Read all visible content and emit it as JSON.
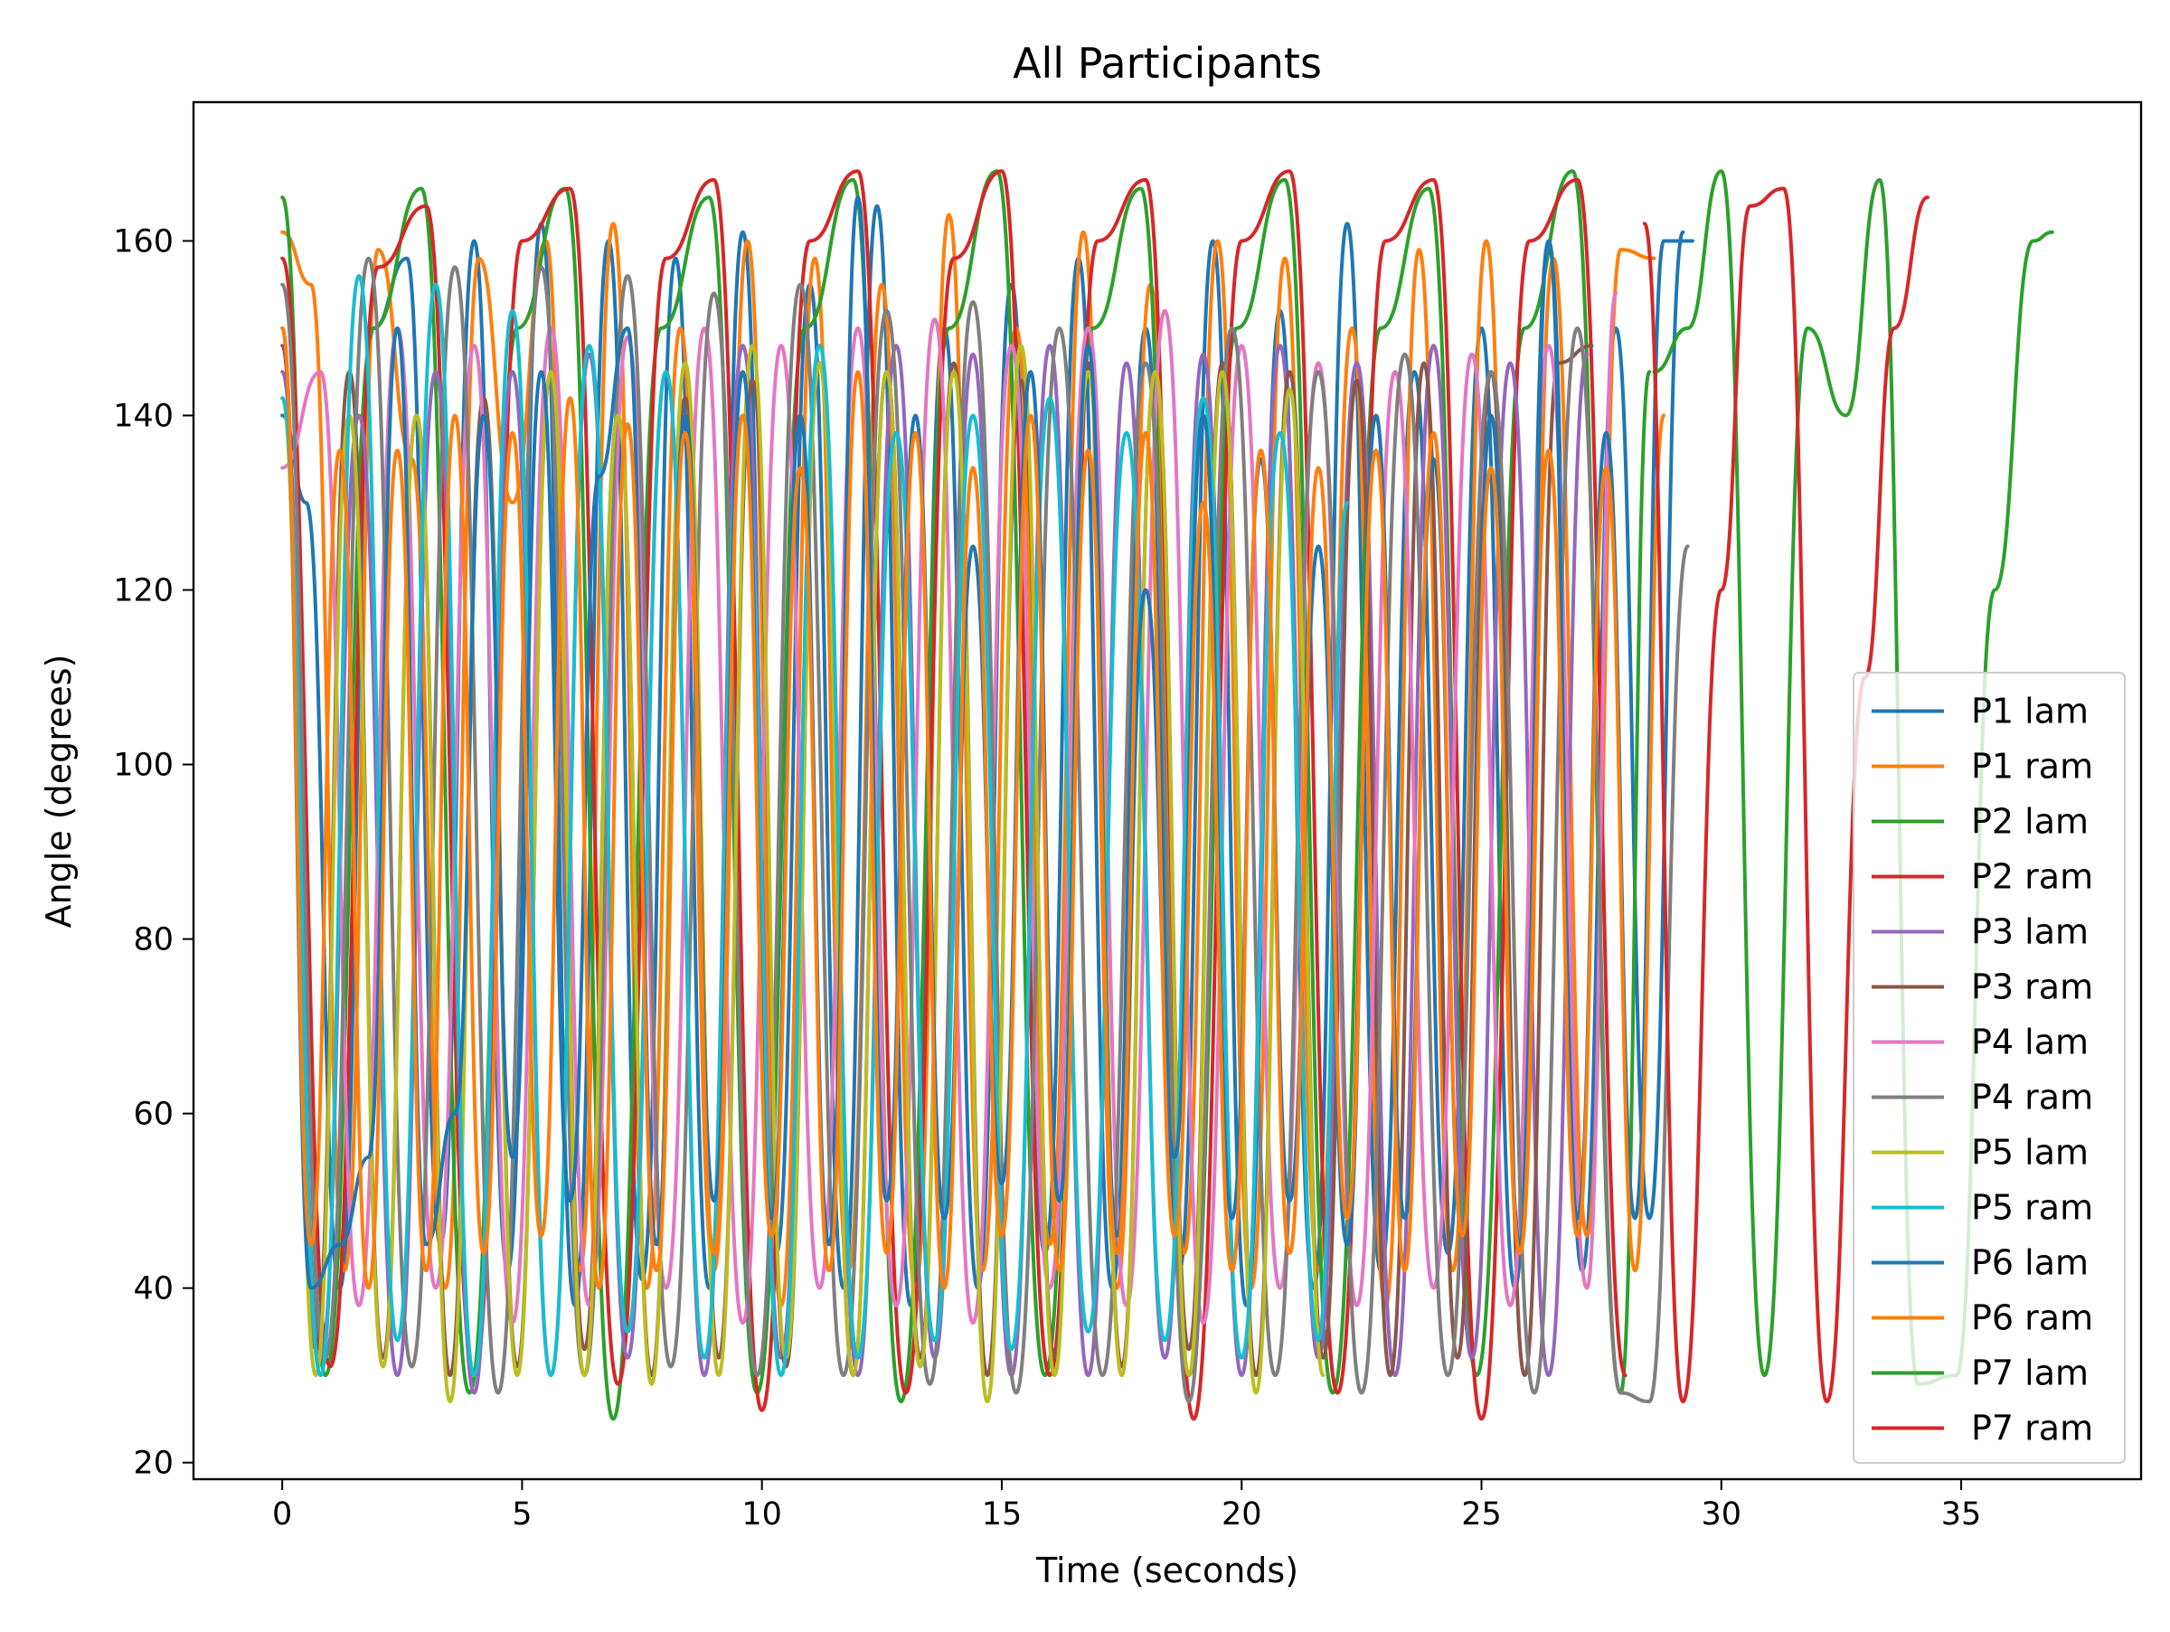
{
  "chart_data": {
    "type": "line",
    "title": "All Participants",
    "xlabel": "Time (seconds)",
    "ylabel": "Angle (degrees)",
    "xlim": [
      -1.85,
      38.75
    ],
    "ylim": [
      18.1,
      175.9
    ],
    "xticks": [
      0,
      5,
      10,
      15,
      20,
      25,
      30,
      35
    ],
    "yticks": [
      20,
      40,
      60,
      80,
      100,
      120,
      140,
      160
    ],
    "grid": false,
    "legend_position": "lower right",
    "series": [
      {
        "name": "P1 lam",
        "color": "#1f77b4",
        "x": [
          0,
          0.5,
          1.2,
          1.9,
          2.6,
          3.3,
          4.0,
          4.7,
          5.4,
          6.1,
          6.8,
          7.5,
          8.2,
          8.9,
          9.6,
          10.3,
          11.0,
          11.7,
          12.4,
          13.1,
          13.8,
          14.5,
          15.2,
          15.9,
          16.6,
          17.3,
          18.0,
          18.7,
          19.4,
          20.1,
          20.8,
          21.5,
          22.2,
          22.9,
          23.6,
          24.3,
          25.0,
          25.7,
          26.4,
          27.1,
          27.8,
          28.5,
          29.2
        ],
        "y": [
          140,
          130,
          40,
          150,
          158,
          45,
          160,
          42,
          162,
          38,
          160,
          41,
          158,
          40,
          161,
          44,
          155,
          40,
          164,
          38,
          150,
          40,
          155,
          44,
          158,
          40,
          150,
          42,
          160,
          38,
          152,
          40,
          162,
          42,
          145,
          44,
          150,
          40,
          160,
          42,
          150,
          48,
          161
        ]
      },
      {
        "name": "P1 ram",
        "color": "#ff7f0e",
        "x": [
          0,
          0.6,
          1.3,
          2.0,
          2.7,
          3.4,
          4.1,
          4.8,
          5.5,
          6.2,
          6.9,
          7.6,
          8.3,
          9.0,
          9.7,
          10.4,
          11.1,
          11.8,
          12.5,
          13.2,
          13.9,
          14.6,
          15.3,
          16.0,
          16.7,
          17.4,
          18.1,
          18.8,
          19.5,
          20.2,
          20.9,
          21.6,
          22.3,
          23.0,
          23.7,
          24.4,
          25.1,
          25.8,
          26.5,
          27.2,
          27.9,
          28.6
        ],
        "y": [
          161,
          155,
          42,
          159,
          135,
          40,
          158,
          130,
          160,
          42,
          162,
          40,
          150,
          42,
          160,
          38,
          158,
          42,
          155,
          40,
          163,
          42,
          150,
          45,
          161,
          40,
          155,
          44,
          160,
          40,
          158,
          42,
          150,
          38,
          159,
          42,
          160,
          44,
          158,
          46,
          159,
          158
        ]
      },
      {
        "name": "P2 lam",
        "color": "#2ca02c",
        "x": [
          0,
          0.9,
          1.9,
          2.9,
          3.9,
          4.9,
          5.9,
          6.9,
          7.9,
          8.9,
          9.9,
          10.9,
          11.9,
          12.9,
          13.9,
          14.9,
          15.9,
          16.9,
          17.9,
          18.9,
          19.9,
          20.9,
          21.9,
          22.9,
          23.9,
          24.9,
          25.9,
          26.9,
          27.9,
          28.5
        ],
        "y": [
          165,
          30,
          150,
          166,
          28,
          150,
          166,
          25,
          150,
          165,
          28,
          150,
          167,
          27,
          150,
          168,
          30,
          150,
          166,
          30,
          150,
          167,
          28,
          150,
          166,
          30,
          150,
          168,
          28,
          145
        ]
      },
      {
        "name": "P2 ram",
        "color": "#d62728",
        "x": [
          0,
          1.0,
          2.0,
          3.0,
          4.0,
          5.0,
          6.0,
          7.0,
          8.0,
          9.0,
          10.0,
          11.0,
          12.0,
          13.0,
          14.0,
          15.0,
          16.0,
          17.0,
          18.0,
          19.0,
          20.0,
          21.0,
          22.0,
          23.0,
          24.0,
          25.0,
          26.0,
          27.0,
          28.0
        ],
        "y": [
          158,
          31,
          157,
          164,
          30,
          160,
          166,
          29,
          158,
          167,
          26,
          160,
          168,
          28,
          158,
          168,
          30,
          160,
          167,
          25,
          160,
          168,
          28,
          160,
          167,
          25,
          160,
          167,
          30
        ]
      },
      {
        "name": "P3 lam",
        "color": "#9467bd",
        "x": [
          0,
          0.8,
          1.6,
          2.4,
          3.2,
          4.0,
          4.8,
          5.6,
          6.4,
          7.2,
          8.0,
          8.8,
          9.6,
          10.4,
          11.2,
          12.0,
          12.8,
          13.6,
          14.4,
          15.2,
          16.0,
          16.8,
          17.6,
          18.4,
          19.2,
          20.0,
          20.8,
          21.6,
          22.4,
          23.2,
          24.0,
          24.8,
          25.6,
          26.4,
          27.2
        ],
        "y": [
          145,
          32,
          140,
          30,
          145,
          28,
          145,
          30,
          147,
          32,
          145,
          30,
          148,
          32,
          146,
          30,
          148,
          32,
          147,
          30,
          148,
          30,
          146,
          32,
          147,
          30,
          148,
          32,
          146,
          30,
          148,
          32,
          146,
          30,
          147
        ]
      },
      {
        "name": "P3 ram",
        "color": "#8c564b",
        "x": [
          0,
          0.7,
          1.4,
          2.1,
          2.8,
          3.5,
          4.2,
          4.9,
          5.6,
          6.3,
          7.0,
          7.7,
          8.4,
          9.1,
          9.8,
          10.5,
          11.2,
          11.9,
          12.6,
          13.3,
          14.0,
          14.7,
          15.4,
          16.1,
          16.8,
          17.5,
          18.2,
          18.9,
          19.6,
          20.3,
          21.0,
          21.7,
          22.4,
          23.1,
          23.8,
          24.5,
          25.2,
          25.9,
          26.6,
          27.3
        ],
        "y": [
          148,
          33,
          145,
          32,
          140,
          30,
          142,
          31,
          145,
          33,
          140,
          30,
          142,
          32,
          144,
          31,
          146,
          30,
          145,
          32,
          146,
          30,
          144,
          32,
          146,
          31,
          145,
          33,
          146,
          30,
          145,
          32,
          144,
          30,
          146,
          32,
          145,
          30,
          146,
          148
        ]
      },
      {
        "name": "P4 lam",
        "color": "#e377c2",
        "x": [
          0,
          0.8,
          1.6,
          2.4,
          3.2,
          4.0,
          4.8,
          5.6,
          6.4,
          7.2,
          8.0,
          8.8,
          9.6,
          10.4,
          11.2,
          12.0,
          12.8,
          13.6,
          14.4,
          15.2,
          16.0,
          16.8,
          17.6,
          18.4,
          19.2,
          20.0,
          20.8,
          21.6,
          22.4,
          23.2,
          24.0,
          24.8,
          25.6,
          26.4,
          27.2,
          27.8
        ],
        "y": [
          134,
          145,
          38,
          150,
          40,
          148,
          36,
          150,
          38,
          149,
          40,
          150,
          36,
          148,
          40,
          150,
          38,
          151,
          36,
          148,
          40,
          150,
          38,
          152,
          36,
          148,
          40,
          146,
          38,
          145,
          40,
          147,
          38,
          148,
          40,
          154
        ]
      },
      {
        "name": "P4 ram",
        "color": "#7f7f7f",
        "x": [
          0,
          0.9,
          1.8,
          2.7,
          3.6,
          4.5,
          5.4,
          6.3,
          7.2,
          8.1,
          9.0,
          9.9,
          10.8,
          11.7,
          12.6,
          13.5,
          14.4,
          15.3,
          16.2,
          17.1,
          18.0,
          18.9,
          19.8,
          20.7,
          21.6,
          22.5,
          23.4,
          24.3,
          25.2,
          26.1,
          27.0,
          27.9,
          28.5,
          29.3
        ],
        "y": [
          155,
          32,
          158,
          31,
          157,
          28,
          157,
          30,
          156,
          31,
          154,
          30,
          155,
          30,
          152,
          29,
          153,
          28,
          150,
          30,
          146,
          27,
          150,
          30,
          145,
          28,
          147,
          30,
          145,
          28,
          150,
          28,
          27,
          125
        ]
      },
      {
        "name": "P5 lam",
        "color": "#bcbd22",
        "x": [
          0,
          0.7,
          1.4,
          2.1,
          2.8,
          3.5,
          4.2,
          4.9,
          5.6,
          6.3,
          7.0,
          7.7,
          8.4,
          9.1,
          9.8,
          10.5,
          11.2,
          11.9,
          12.6,
          13.3,
          14.0,
          14.7,
          15.4,
          16.1,
          16.8,
          17.5,
          18.2,
          18.9,
          19.6,
          20.3,
          21.0,
          21.7
        ],
        "y": [
          142,
          30,
          140,
          31,
          140,
          27,
          140,
          30,
          145,
          30,
          140,
          29,
          146,
          30,
          148,
          32,
          146,
          30,
          145,
          31,
          145,
          27,
          148,
          30,
          145,
          30,
          145,
          30,
          145,
          28,
          143,
          30
        ]
      },
      {
        "name": "P5 ram",
        "color": "#17becf",
        "x": [
          0,
          0.8,
          1.6,
          2.4,
          3.2,
          4.0,
          4.8,
          5.6,
          6.4,
          7.2,
          8.0,
          8.8,
          9.6,
          10.4,
          11.2,
          12.0,
          12.8,
          13.6,
          14.4,
          15.2,
          16.0,
          16.8,
          17.6,
          18.4,
          19.2,
          20.0,
          20.8,
          21.6,
          22.2
        ],
        "y": [
          142,
          30,
          156,
          34,
          155,
          30,
          152,
          30,
          148,
          35,
          145,
          32,
          140,
          30,
          148,
          32,
          138,
          34,
          140,
          33,
          142,
          35,
          138,
          34,
          142,
          32,
          138,
          34,
          130
        ]
      },
      {
        "name": "P6 lam",
        "color": "#1f77b4",
        "x": [
          0,
          0.6,
          1.2,
          1.8,
          2.4,
          3.0,
          3.6,
          4.2,
          4.8,
          5.4,
          6.0,
          6.6,
          7.2,
          7.8,
          8.4,
          9.0,
          9.6,
          10.2,
          10.8,
          11.4,
          12.0,
          12.6,
          13.2,
          13.8,
          14.4,
          15.0,
          15.6,
          16.2,
          16.8,
          17.4,
          18.0,
          18.6,
          19.2,
          19.8,
          20.4,
          21.0,
          21.6,
          22.2,
          22.8,
          23.4,
          24.0,
          24.6,
          25.2,
          25.8,
          26.4,
          27.0,
          27.6,
          28.2,
          28.8,
          29.4
        ],
        "y": [
          150,
          40,
          45,
          55,
          150,
          45,
          60,
          140,
          55,
          145,
          50,
          133,
          150,
          45,
          140,
          50,
          145,
          48,
          140,
          45,
          165,
          50,
          140,
          48,
          125,
          52,
          145,
          50,
          148,
          46,
          120,
          55,
          140,
          48,
          135,
          50,
          125,
          45,
          140,
          48,
          135,
          46,
          140,
          45,
          160,
          48,
          138,
          48,
          160,
          160
        ]
      },
      {
        "name": "P6 ram",
        "color": "#ff7f0e",
        "x": [
          0,
          0.6,
          1.2,
          1.8,
          2.4,
          3.0,
          3.6,
          4.2,
          4.8,
          5.4,
          6.0,
          6.6,
          7.2,
          7.8,
          8.4,
          9.0,
          9.6,
          10.2,
          10.8,
          11.4,
          12.0,
          12.6,
          13.2,
          13.8,
          14.4,
          15.0,
          15.6,
          16.2,
          16.8,
          17.4,
          18.0,
          18.6,
          19.2,
          19.8,
          20.4,
          21.0,
          21.6,
          22.2,
          22.8,
          23.4,
          24.0,
          24.6,
          25.2,
          25.8,
          26.4,
          27.0,
          27.6,
          28.2,
          28.8
        ],
        "y": [
          150,
          45,
          136,
          40,
          136,
          42,
          140,
          44,
          138,
          46,
          142,
          40,
          139,
          42,
          138,
          44,
          140,
          46,
          134,
          42,
          145,
          44,
          138,
          40,
          134,
          46,
          140,
          42,
          136,
          44,
          138,
          46,
          130,
          42,
          136,
          44,
          134,
          48,
          136,
          42,
          138,
          46,
          134,
          44,
          136,
          46,
          134,
          42,
          140
        ]
      },
      {
        "name": "P7 lam",
        "color": "#2ca02c",
        "x": [
          28.6,
          29.3,
          30.0,
          30.9,
          31.8,
          32.6,
          33.3,
          34.1,
          34.9,
          35.7,
          36.5,
          36.9
        ],
        "y": [
          145,
          150,
          168,
          30,
          150,
          140,
          167,
          29,
          30,
          120,
          160,
          161
        ]
      },
      {
        "name": "P7 ram",
        "color": "#d62728",
        "x": [
          28.4,
          29.2,
          30.0,
          30.6,
          31.3,
          32.2,
          33.0,
          33.6,
          34.3
        ],
        "y": [
          162,
          27,
          120,
          164,
          166,
          27,
          110,
          150,
          165
        ]
      }
    ]
  }
}
